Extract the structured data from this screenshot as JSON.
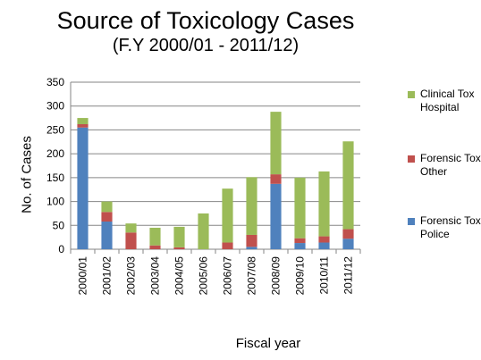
{
  "chart_data": {
    "type": "bar",
    "stacked": true,
    "title": "Source of Toxicology Cases",
    "subtitle": "(F.Y 2000/01 - 2011/12)",
    "xlabel": "Fiscal year",
    "ylabel": "No. of Cases",
    "ylim": [
      0,
      350
    ],
    "yticks": [
      "0",
      "50",
      "100",
      "150",
      "200",
      "250",
      "300",
      "350"
    ],
    "grid": true,
    "legend_position": "right",
    "categories": [
      "2000/01",
      "2001/02",
      "2002/03",
      "2003/04",
      "2004/05",
      "2005/06",
      "2006/07",
      "2007/08",
      "2008/09",
      "2009/10",
      "2010/11",
      "2011/12"
    ],
    "series": [
      {
        "name": "Forensic Tox Police",
        "color": "#4f81bd",
        "values": [
          255,
          58,
          0,
          0,
          0,
          0,
          0,
          5,
          137,
          13,
          14,
          22
        ]
      },
      {
        "name": "Forensic Tox Other",
        "color": "#c0504d",
        "values": [
          7,
          20,
          35,
          8,
          4,
          0,
          14,
          25,
          20,
          10,
          13,
          20
        ]
      },
      {
        "name": "Clinical Tox Hospital",
        "color": "#9bbb59",
        "values": [
          13,
          22,
          19,
          37,
          43,
          75,
          113,
          121,
          131,
          127,
          136,
          184
        ]
      }
    ]
  }
}
